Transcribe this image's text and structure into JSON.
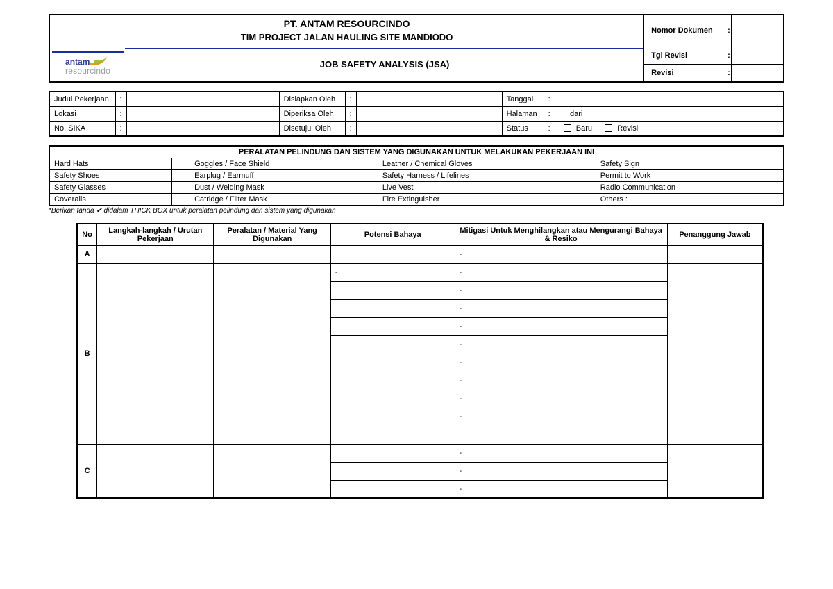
{
  "header": {
    "company": "PT. ANTAM RESOURCINDO",
    "project": "TIM PROJECT JALAN HAULING SITE MANDIODO",
    "logo_top": "antam",
    "logo_bottom": "resourcindo",
    "title": "JOB SAFETY ANALYSIS (JSA)",
    "fields": {
      "nomor_dokumen": {
        "label": "Nomor Dokumen",
        "value": ""
      },
      "tgl_revisi": {
        "label": "Tgl Revisi",
        "value": ""
      },
      "revisi": {
        "label": "Revisi",
        "value": ""
      }
    }
  },
  "info": {
    "judul": {
      "label": "Judul Pekerjaan",
      "value": ""
    },
    "lokasi": {
      "label": "Lokasi",
      "value": ""
    },
    "sika": {
      "label": "No. SIKA",
      "value": ""
    },
    "disiapkan": {
      "label": "Disiapkan Oleh",
      "value": ""
    },
    "diperiksa": {
      "label": "Diperiksa Oleh",
      "value": ""
    },
    "disetujui": {
      "label": "Disetujui Oleh",
      "value": ""
    },
    "tanggal": {
      "label": "Tanggal",
      "value": ""
    },
    "halaman": {
      "label": "Halaman",
      "value": "",
      "dari_label": "dari",
      "dari_value": ""
    },
    "status": {
      "label": "Status",
      "baru_label": "Baru",
      "revisi_label": "Revisi"
    }
  },
  "equipment": {
    "title": "PERALATAN PELINDUNG DAN SISTEM YANG DIGUNAKAN UNTUK MELAKUKAN PEKERJAAN INI",
    "rows": [
      [
        "Hard Hats",
        "Goggles / Face Shield",
        "Leather / Chemical Gloves",
        "Safety Sign"
      ],
      [
        "Safety Shoes",
        "Earplug / Earmuff",
        "Safety Harness / Lifelines",
        "Permit to Work"
      ],
      [
        "Safety Glasses",
        "Dust / Welding Mask",
        "Live Vest",
        "Radio Communication"
      ],
      [
        "Coveralls",
        "Catridge / Filter Mask",
        "Fire Extinguisher",
        "Others :"
      ]
    ],
    "note": "*Berikan tanda ✔ didalam THICK BOX untuk peralatan pelindung dan sistem yang digunakan"
  },
  "jsa": {
    "headers": {
      "no": "No",
      "langkah": "Langkah-langkah / Urutan Pekerjaan",
      "peralatan": "Peralatan / Material Yang Digunakan",
      "potensi": "Potensi Bahaya",
      "mitigasi": "Mitigasi Untuk Menghilangkan atau Mengurangi Bahaya & Resiko",
      "pj": "Penanggung Jawab"
    },
    "sections": [
      {
        "id": "A",
        "rows": [
          {
            "potensi": "",
            "mitigasi": "-"
          }
        ]
      },
      {
        "id": "B",
        "rows": [
          {
            "potensi": "-",
            "mitigasi": "-"
          },
          {
            "potensi": "",
            "mitigasi": "-"
          },
          {
            "potensi": "",
            "mitigasi": "-"
          },
          {
            "potensi": "",
            "mitigasi": "-"
          },
          {
            "potensi": "",
            "mitigasi": "-"
          },
          {
            "potensi": "",
            "mitigasi": "-"
          },
          {
            "potensi": "",
            "mitigasi": "-"
          },
          {
            "potensi": "",
            "mitigasi": "-"
          },
          {
            "potensi": "",
            "mitigasi": "-"
          },
          {
            "potensi": "",
            "mitigasi": ""
          }
        ]
      },
      {
        "id": "C",
        "rows": [
          {
            "potensi": "",
            "mitigasi": "-"
          },
          {
            "potensi": "",
            "mitigasi": "-"
          },
          {
            "potensi": "",
            "mitigasi": "-"
          }
        ]
      }
    ]
  }
}
